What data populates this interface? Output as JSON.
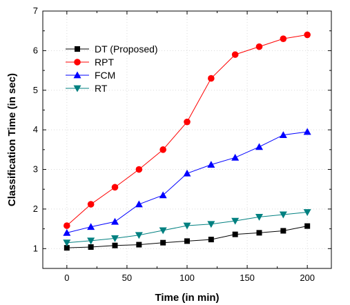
{
  "chart_data": {
    "type": "line",
    "title": "",
    "xlabel": "Time (in min)",
    "ylabel": "Classification Time (in sec)",
    "x": [
      0,
      20,
      40,
      60,
      80,
      100,
      120,
      140,
      160,
      180,
      200
    ],
    "xlim": [
      -20,
      220
    ],
    "ylim": [
      0.5,
      7
    ],
    "x_ticks": [
      0,
      50,
      100,
      150,
      200
    ],
    "y_ticks": [
      1,
      2,
      3,
      4,
      5,
      6,
      7
    ],
    "grid": true,
    "legend_position": "top-left",
    "series": [
      {
        "name": "DT (Proposed)",
        "color": "#000000",
        "marker": "square",
        "values": [
          1.02,
          1.04,
          1.08,
          1.1,
          1.15,
          1.19,
          1.23,
          1.36,
          1.4,
          1.45,
          1.57
        ]
      },
      {
        "name": "RPT",
        "color": "#ff0000",
        "marker": "circle",
        "values": [
          1.58,
          2.12,
          2.55,
          3.0,
          3.5,
          4.2,
          5.3,
          5.9,
          6.1,
          6.3,
          6.4
        ]
      },
      {
        "name": "FCM",
        "color": "#0000ff",
        "marker": "triangle-up",
        "values": [
          1.4,
          1.55,
          1.68,
          2.12,
          2.35,
          2.9,
          3.12,
          3.3,
          3.57,
          3.87,
          3.95
        ]
      },
      {
        "name": "RT",
        "color": "#008080",
        "marker": "triangle-down",
        "values": [
          1.15,
          1.2,
          1.26,
          1.34,
          1.46,
          1.58,
          1.62,
          1.7,
          1.8,
          1.86,
          1.92
        ]
      }
    ]
  }
}
